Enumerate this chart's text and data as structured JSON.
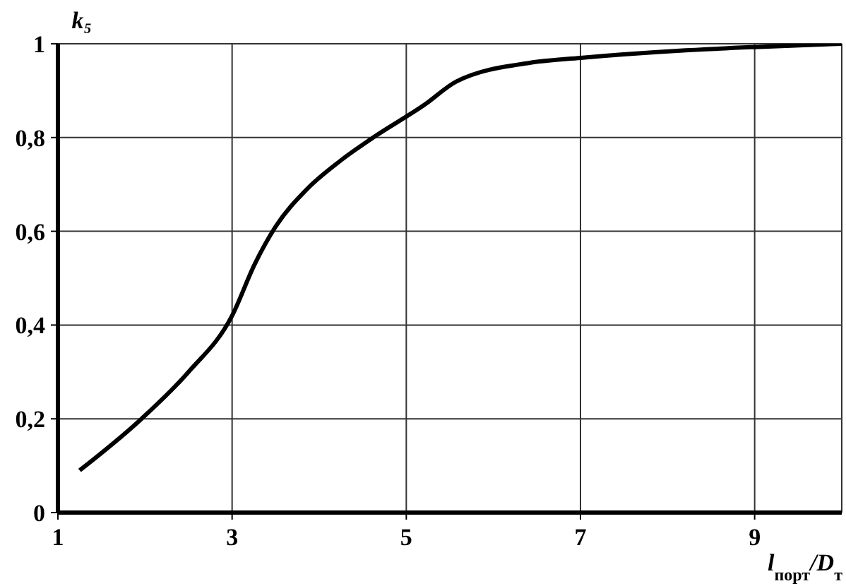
{
  "chart_data": {
    "type": "line",
    "xlabel": "l$_{порт}$/D$_{т}$",
    "ylabel": "k₅",
    "x": [
      1.25,
      1.96,
      2.5,
      3.0,
      3.26,
      3.5,
      3.86,
      4.24,
      4.62,
      5.21,
      5.58,
      6.44,
      7.0,
      8.11,
      9.0,
      10.0
    ],
    "series": [
      {
        "color": "#000000",
        "values": [
          0.09,
          0.2,
          0.3,
          0.42,
          0.53,
          0.61,
          0.69,
          0.75,
          0.8,
          0.87,
          0.92,
          0.96,
          0.97,
          0.985,
          0.993,
          1.0
        ]
      }
    ],
    "xlim": [
      1,
      10
    ],
    "xticks": [
      1,
      3,
      5,
      7,
      9
    ],
    "ylim": [
      0,
      1
    ],
    "yticks": [
      0,
      {
        "value": 0.2,
        "label": "0,2"
      },
      {
        "value": 0.4,
        "label": "0,4"
      },
      {
        "value": 0.6,
        "label": "0,6"
      },
      {
        "value": 0.8,
        "label": "0,8"
      },
      1
    ],
    "grid": true,
    "legend": false,
    "marker": "none",
    "line_style": "solid"
  }
}
